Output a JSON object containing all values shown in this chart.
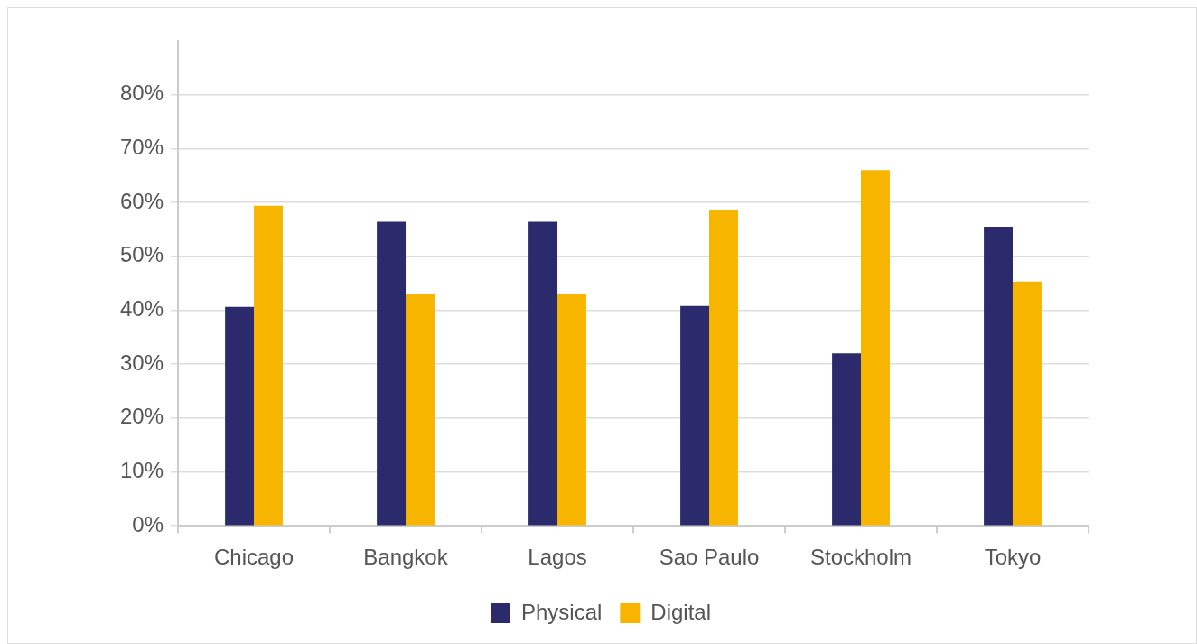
{
  "chart_data": {
    "type": "bar",
    "categories": [
      "Chicago",
      "Bangkok",
      "Lagos",
      "Sao Paulo",
      "Stockholm",
      "Tokyo"
    ],
    "series": [
      {
        "name": "Physical",
        "color": "#2a2a6c",
        "values": [
          40.6,
          56.4,
          56.4,
          40.8,
          32,
          55.5
        ]
      },
      {
        "name": "Digital",
        "color": "#f7b500",
        "values": [
          59.4,
          43.1,
          43.1,
          58.5,
          66,
          45.3
        ]
      }
    ],
    "ylim": [
      0,
      90
    ],
    "yticks": [
      {
        "value": 0,
        "label": "0%"
      },
      {
        "value": 10,
        "label": "10%"
      },
      {
        "value": 20,
        "label": "20%"
      },
      {
        "value": 30,
        "label": "30%"
      },
      {
        "value": 40,
        "label": "40%"
      },
      {
        "value": 50,
        "label": "50%"
      },
      {
        "value": 60,
        "label": "60%"
      },
      {
        "value": 70,
        "label": "70%"
      },
      {
        "value": 80,
        "label": "80%"
      }
    ],
    "grid": "y",
    "legend": "bottom"
  }
}
